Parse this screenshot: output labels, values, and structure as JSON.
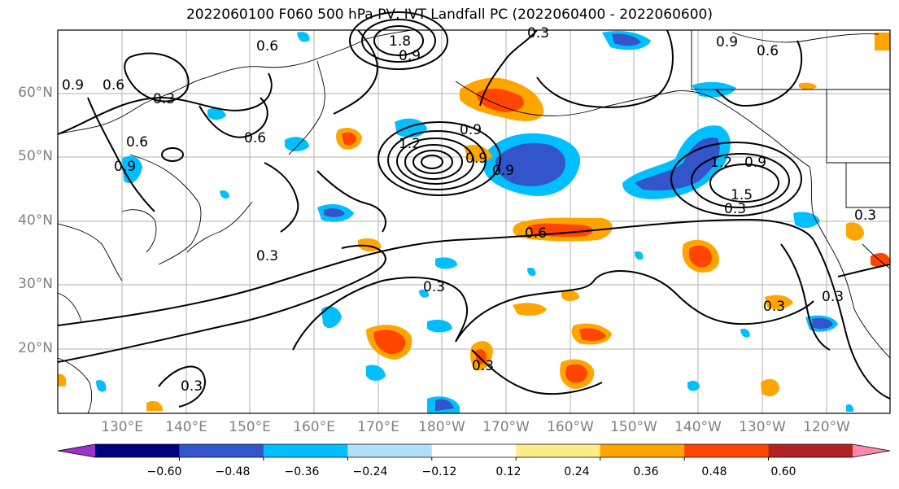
{
  "title": "2022060100 F060 500 hPa PV, IVT Landfall PC (2022060400 - 2022060600)",
  "lat_labels": [
    "60°N",
    "50°N",
    "40°N",
    "30°N",
    "20°N"
  ],
  "lon_labels": [
    "130°E",
    "140°E",
    "150°E",
    "160°E",
    "170°E",
    "180°W",
    "170°W",
    "160°W",
    "150°W",
    "140°W",
    "130°W",
    "120°W"
  ],
  "colorbar": {
    "tick_labels": [
      "−0.60",
      "−0.48",
      "−0.36",
      "−0.24",
      "−0.12",
      "0.12",
      "0.24",
      "0.36",
      "0.48",
      "0.60"
    ],
    "colors": [
      "#9933cc",
      "#000080",
      "#3355cc",
      "#00bfff",
      "#b0e0f8",
      "#ffffff",
      "#ffeb88",
      "#ffa500",
      "#ff4500",
      "#b22222",
      "#ff88aa"
    ]
  },
  "contour_labels": [
    "0.6",
    "0.9",
    "1.8",
    "0.9",
    "0.3",
    "0.9",
    "0.6",
    "0.9",
    "0.3",
    "0.6",
    "0.6",
    "0.6",
    "0.9",
    "0.9",
    "1.2",
    "1.5",
    "0.9",
    "1.2",
    "0.9",
    "0.6",
    "0.3",
    "0.3",
    "0.3",
    "0.3",
    "0.3",
    "0.3",
    "0.3",
    "0.3"
  ]
}
